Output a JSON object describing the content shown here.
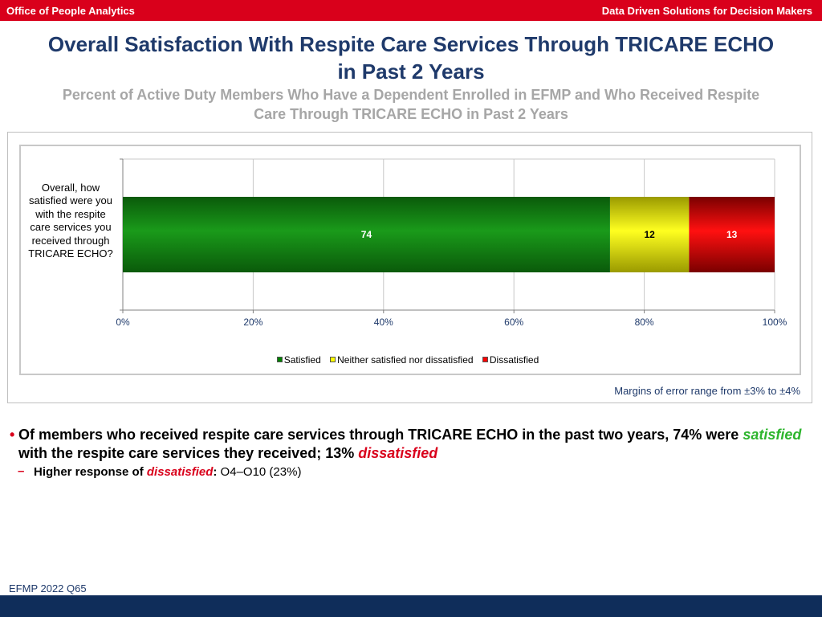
{
  "header": {
    "left": "Office of People Analytics",
    "right": "Data Driven Solutions for Decision Makers"
  },
  "title_line1": "Overall Satisfaction With Respite Care Services Through TRICARE ECHO",
  "title_line2": "in Past 2 Years",
  "subtitle_line1": "Percent of Active Duty Members Who Have a Dependent Enrolled in EFMP and Who Received Respite",
  "subtitle_line2": "Care Through TRICARE ECHO in Past 2 Years",
  "chart_data": {
    "type": "bar",
    "orientation": "horizontal",
    "stacked": true,
    "categories": [
      "Overall, how satisfied were you with the respite care services you received through TRICARE ECHO?"
    ],
    "series": [
      {
        "name": "Satisfied",
        "values": [
          74
        ],
        "color": "#008000"
      },
      {
        "name": "Neither satisfied nor dissatisfied",
        "values": [
          12
        ],
        "color": "#ffff00"
      },
      {
        "name": "Dissatisfied",
        "values": [
          13
        ],
        "color": "#ff0000"
      }
    ],
    "xlim": [
      0,
      100
    ],
    "xticks": [
      "0%",
      "20%",
      "40%",
      "60%",
      "80%",
      "100%"
    ],
    "grid": true,
    "legend": "bottom"
  },
  "question_label": "Overall, how satisfied were you with the respite care services you received through TRICARE ECHO?",
  "moe_note": "Margins of error range from ±3% to ±4%",
  "bullet1": {
    "bullet_char": "•",
    "part1": "Of members who received respite care services through TRICARE ECHO in the past two years, 74% were ",
    "sat_word": "satisfied",
    "part2": " with the respite care services they received; 13% ",
    "dis_word": "dissatisfied"
  },
  "bullet2": {
    "dash_char": "–",
    "lead": "Higher response of ",
    "dis_word": "dissatisfied",
    "colon": ":",
    "rest": "  O4–O10 (23%)"
  },
  "footnote": "EFMP 2022 Q65"
}
